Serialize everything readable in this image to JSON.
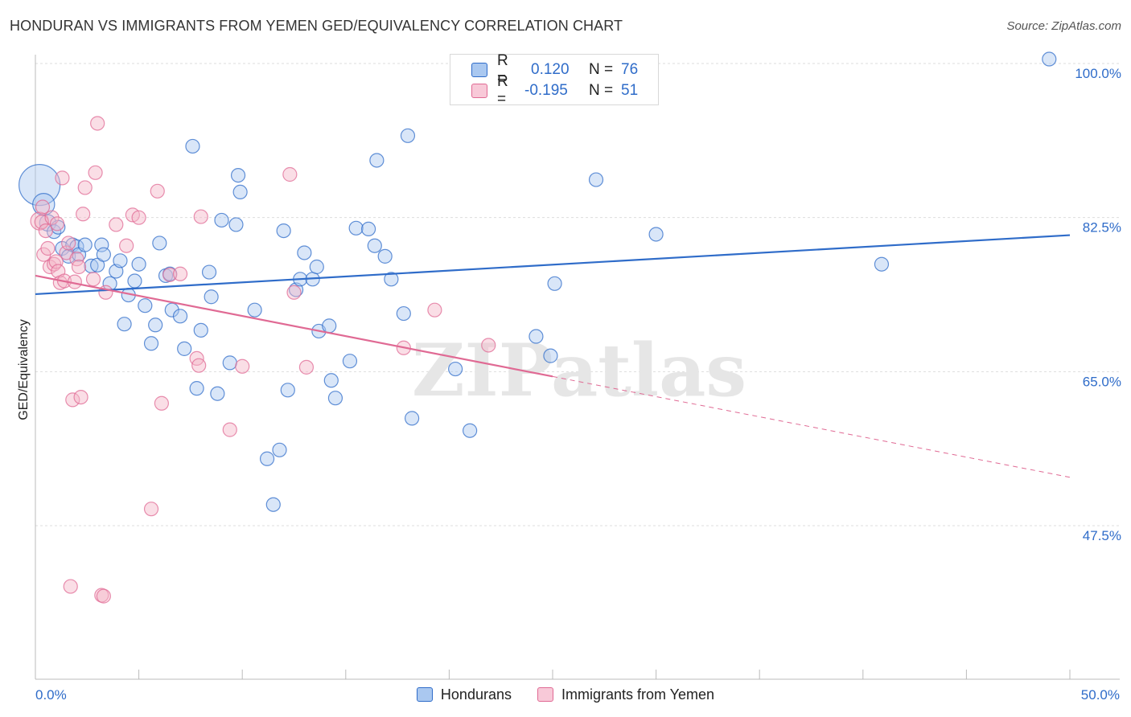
{
  "title": "HONDURAN VS IMMIGRANTS FROM YEMEN GED/EQUIVALENCY CORRELATION CHART",
  "source": "Source: ZipAtlas.com",
  "watermark": "ZIPatlas",
  "colors": {
    "blue": "#2f6cc9",
    "blue_fill": "#aac8f0",
    "pink": "#e06a94",
    "pink_fill": "#f5b5c8",
    "grid": "#dddddd"
  },
  "legend_top": {
    "rows": [
      {
        "r_label": "R =",
        "r_value": "0.120",
        "n_label": "N =",
        "n_value": "76"
      },
      {
        "r_label": "R =",
        "r_value": "-0.195",
        "n_label": "N =",
        "n_value": "51"
      }
    ]
  },
  "chart_data": {
    "type": "scatter",
    "xlabel": "",
    "ylabel": "GED/Equivalency",
    "xlim": [
      0,
      50
    ],
    "ylim": [
      32,
      103
    ],
    "x_tick_labels": [
      {
        "value": 0,
        "label": "0.0%"
      },
      {
        "value": 50,
        "label": "50.0%"
      }
    ],
    "y_tick_labels": [
      {
        "value": 100,
        "label": "100.0%"
      },
      {
        "value": 82.5,
        "label": "82.5%"
      },
      {
        "value": 65,
        "label": "65.0%"
      },
      {
        "value": 47.5,
        "label": "47.5%"
      }
    ],
    "grid": true,
    "legend_position": "bottom",
    "series": [
      {
        "name": "Hondurans",
        "color": "#2f6cc9",
        "trend": {
          "x": [
            0,
            50
          ],
          "y": [
            73.8,
            80.5
          ],
          "dashed_from": null
        },
        "points": [
          {
            "x": 0.2,
            "y": 86.2,
            "s": 3
          },
          {
            "x": 0.4,
            "y": 84.0,
            "s": 1.6
          },
          {
            "x": 0.6,
            "y": 81.9,
            "s": 1.2
          },
          {
            "x": 0.9,
            "y": 80.9
          },
          {
            "x": 1.1,
            "y": 81.4
          },
          {
            "x": 1.3,
            "y": 79.0
          },
          {
            "x": 1.6,
            "y": 78.1
          },
          {
            "x": 1.8,
            "y": 79.4
          },
          {
            "x": 2.0,
            "y": 79.2
          },
          {
            "x": 2.1,
            "y": 78.3
          },
          {
            "x": 2.4,
            "y": 79.4
          },
          {
            "x": 2.7,
            "y": 77.0
          },
          {
            "x": 3.0,
            "y": 77.1
          },
          {
            "x": 3.2,
            "y": 79.4
          },
          {
            "x": 3.3,
            "y": 78.3
          },
          {
            "x": 3.6,
            "y": 75.0
          },
          {
            "x": 3.9,
            "y": 76.4
          },
          {
            "x": 4.1,
            "y": 77.6
          },
          {
            "x": 4.3,
            "y": 70.4
          },
          {
            "x": 4.5,
            "y": 73.7
          },
          {
            "x": 4.8,
            "y": 75.3
          },
          {
            "x": 5.0,
            "y": 77.2
          },
          {
            "x": 5.3,
            "y": 72.5
          },
          {
            "x": 5.6,
            "y": 68.2
          },
          {
            "x": 5.8,
            "y": 70.3
          },
          {
            "x": 6.0,
            "y": 79.6
          },
          {
            "x": 6.3,
            "y": 75.9
          },
          {
            "x": 6.5,
            "y": 76.1
          },
          {
            "x": 6.6,
            "y": 72.0
          },
          {
            "x": 7.0,
            "y": 71.3
          },
          {
            "x": 7.2,
            "y": 67.6
          },
          {
            "x": 7.6,
            "y": 90.6
          },
          {
            "x": 7.8,
            "y": 63.1
          },
          {
            "x": 8.0,
            "y": 69.7
          },
          {
            "x": 8.4,
            "y": 76.3
          },
          {
            "x": 8.5,
            "y": 73.5
          },
          {
            "x": 8.8,
            "y": 62.5
          },
          {
            "x": 9.0,
            "y": 82.2
          },
          {
            "x": 9.4,
            "y": 66.0
          },
          {
            "x": 9.7,
            "y": 81.7
          },
          {
            "x": 9.8,
            "y": 87.3
          },
          {
            "x": 9.9,
            "y": 85.4
          },
          {
            "x": 10.6,
            "y": 72.0
          },
          {
            "x": 11.2,
            "y": 55.1
          },
          {
            "x": 11.5,
            "y": 49.9
          },
          {
            "x": 11.8,
            "y": 56.1
          },
          {
            "x": 12.0,
            "y": 81.0
          },
          {
            "x": 12.2,
            "y": 62.9
          },
          {
            "x": 12.6,
            "y": 74.3
          },
          {
            "x": 12.8,
            "y": 75.5
          },
          {
            "x": 13.0,
            "y": 78.5
          },
          {
            "x": 13.4,
            "y": 75.5
          },
          {
            "x": 13.6,
            "y": 76.9
          },
          {
            "x": 13.7,
            "y": 69.6
          },
          {
            "x": 14.2,
            "y": 70.2
          },
          {
            "x": 14.3,
            "y": 64.0
          },
          {
            "x": 14.5,
            "y": 62.0
          },
          {
            "x": 15.2,
            "y": 66.2
          },
          {
            "x": 15.5,
            "y": 81.3
          },
          {
            "x": 16.1,
            "y": 81.2
          },
          {
            "x": 16.4,
            "y": 79.3
          },
          {
            "x": 16.5,
            "y": 89.0
          },
          {
            "x": 16.9,
            "y": 78.1
          },
          {
            "x": 17.2,
            "y": 75.5
          },
          {
            "x": 17.8,
            "y": 71.6
          },
          {
            "x": 18.0,
            "y": 91.8
          },
          {
            "x": 18.2,
            "y": 59.7
          },
          {
            "x": 20.3,
            "y": 65.3
          },
          {
            "x": 21.0,
            "y": 58.3
          },
          {
            "x": 24.2,
            "y": 69.0
          },
          {
            "x": 24.9,
            "y": 66.8
          },
          {
            "x": 25.1,
            "y": 75.0
          },
          {
            "x": 27.1,
            "y": 86.8
          },
          {
            "x": 30.0,
            "y": 80.6
          },
          {
            "x": 40.9,
            "y": 77.2
          },
          {
            "x": 49.0,
            "y": 100.5
          }
        ]
      },
      {
        "name": "Immigrants from Yemen",
        "color": "#e06a94",
        "trend": {
          "x": [
            0,
            50
          ],
          "y": [
            75.9,
            53.0
          ],
          "dashed_from": 25.0
        },
        "points": [
          {
            "x": 0.2,
            "y": 82.1,
            "s": 1.3
          },
          {
            "x": 0.3,
            "y": 82.0
          },
          {
            "x": 0.4,
            "y": 78.3
          },
          {
            "x": 0.5,
            "y": 81.0
          },
          {
            "x": 0.6,
            "y": 79.0
          },
          {
            "x": 0.7,
            "y": 76.9
          },
          {
            "x": 0.8,
            "y": 82.5
          },
          {
            "x": 0.9,
            "y": 77.2
          },
          {
            "x": 1.0,
            "y": 77.5
          },
          {
            "x": 1.1,
            "y": 76.4
          },
          {
            "x": 1.2,
            "y": 75.1
          },
          {
            "x": 1.3,
            "y": 87.0
          },
          {
            "x": 1.4,
            "y": 75.3
          },
          {
            "x": 1.5,
            "y": 78.5
          },
          {
            "x": 1.6,
            "y": 79.6
          },
          {
            "x": 1.7,
            "y": 40.6
          },
          {
            "x": 1.8,
            "y": 61.8
          },
          {
            "x": 1.9,
            "y": 75.2
          },
          {
            "x": 2.0,
            "y": 77.8
          },
          {
            "x": 2.1,
            "y": 76.9
          },
          {
            "x": 2.2,
            "y": 62.1
          },
          {
            "x": 2.3,
            "y": 82.9
          },
          {
            "x": 2.4,
            "y": 85.9
          },
          {
            "x": 2.8,
            "y": 75.5
          },
          {
            "x": 2.9,
            "y": 87.6
          },
          {
            "x": 3.0,
            "y": 93.2
          },
          {
            "x": 3.2,
            "y": 39.6
          },
          {
            "x": 3.3,
            "y": 39.5
          },
          {
            "x": 3.4,
            "y": 74.0
          },
          {
            "x": 3.9,
            "y": 81.7
          },
          {
            "x": 4.4,
            "y": 79.3
          },
          {
            "x": 4.7,
            "y": 82.8
          },
          {
            "x": 5.0,
            "y": 82.5
          },
          {
            "x": 5.6,
            "y": 49.4
          },
          {
            "x": 5.9,
            "y": 85.5
          },
          {
            "x": 6.1,
            "y": 61.4
          },
          {
            "x": 6.5,
            "y": 76.0
          },
          {
            "x": 7.0,
            "y": 76.1
          },
          {
            "x": 7.8,
            "y": 66.5
          },
          {
            "x": 7.9,
            "y": 65.7
          },
          {
            "x": 8.0,
            "y": 82.6
          },
          {
            "x": 9.4,
            "y": 58.4
          },
          {
            "x": 10.0,
            "y": 65.6
          },
          {
            "x": 12.3,
            "y": 87.4
          },
          {
            "x": 12.5,
            "y": 74.0
          },
          {
            "x": 13.1,
            "y": 65.5
          },
          {
            "x": 17.8,
            "y": 67.7
          },
          {
            "x": 19.3,
            "y": 72.0
          },
          {
            "x": 21.9,
            "y": 68.0
          },
          {
            "x": 0.35,
            "y": 83.7
          },
          {
            "x": 1.05,
            "y": 81.8
          }
        ]
      }
    ]
  },
  "legend_bottom": {
    "items": [
      {
        "label": "Hondurans"
      },
      {
        "label": "Immigrants from Yemen"
      }
    ]
  }
}
